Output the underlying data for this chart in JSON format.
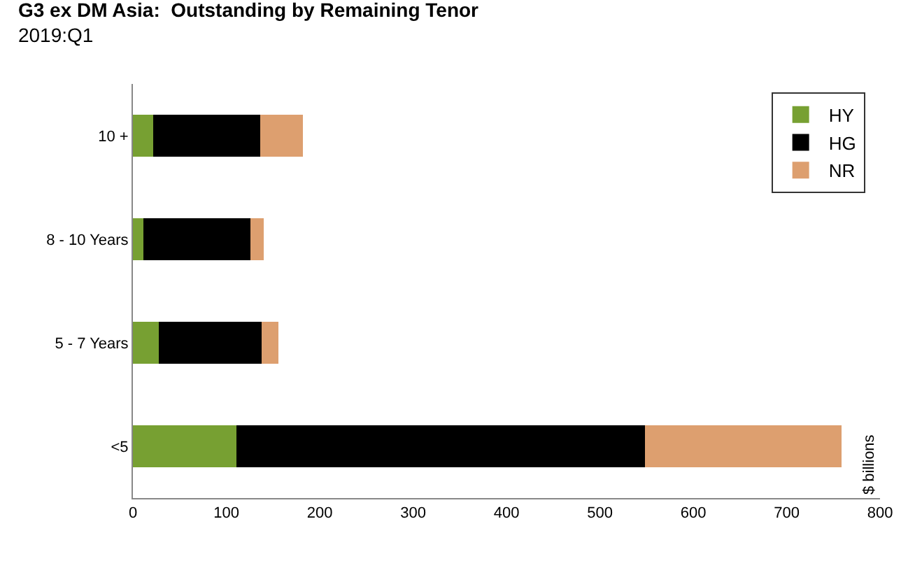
{
  "chart_data": {
    "type": "bar",
    "orientation": "horizontal",
    "stacked": true,
    "title": "G3 ex DM Asia:  Outstanding by Remaining Tenor",
    "subtitle": "2019:Q1",
    "annotations": [
      "$ billions"
    ],
    "categories": [
      "10 +",
      "8 - 10 Years",
      "5 - 7 Years",
      "<5"
    ],
    "series": [
      {
        "name": "HY",
        "color": "#77a032",
        "values": [
          22,
          11,
          28,
          111
        ]
      },
      {
        "name": "HG",
        "color": "#000000",
        "values": [
          114,
          115,
          110,
          437
        ]
      },
      {
        "name": "NR",
        "color": "#dd9f6f",
        "values": [
          46,
          14,
          18,
          211
        ]
      }
    ],
    "xlim": [
      0,
      800
    ],
    "xticks": [
      0,
      100,
      200,
      300,
      400,
      500,
      600,
      700,
      800
    ],
    "legend": "top right"
  }
}
